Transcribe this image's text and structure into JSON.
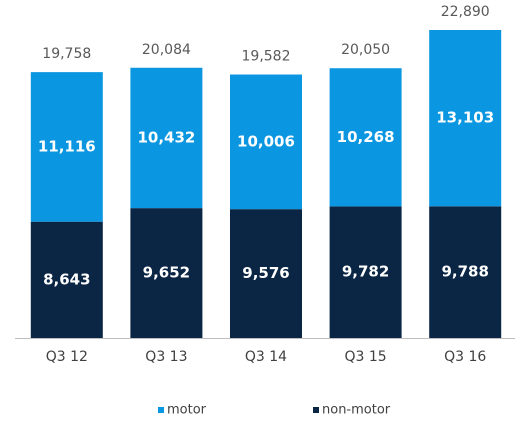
{
  "chart_data": {
    "type": "stacked_bar",
    "categories": [
      "Q3 12",
      "Q3 13",
      "Q3 14",
      "Q3 15",
      "Q3 16"
    ],
    "series": [
      {
        "name": "non-motor",
        "color": "#0b2545",
        "values": [
          8643,
          9652,
          9576,
          9782,
          9788
        ],
        "value_labels": [
          "8,643",
          "9,652",
          "9,576",
          "9,782",
          "9,788"
        ]
      },
      {
        "name": "motor",
        "color": "#0a96e0",
        "values": [
          11116,
          10432,
          10006,
          10268,
          13103
        ],
        "value_labels": [
          "11,116",
          "10,432",
          "10,006",
          "10,268",
          "13,103"
        ]
      }
    ],
    "totals": {
      "values": [
        19758,
        20084,
        19582,
        20050,
        22890
      ],
      "value_labels": [
        "19,758",
        "20,084",
        "19,582",
        "20,050",
        "22,890"
      ]
    },
    "legend": "bottom"
  }
}
